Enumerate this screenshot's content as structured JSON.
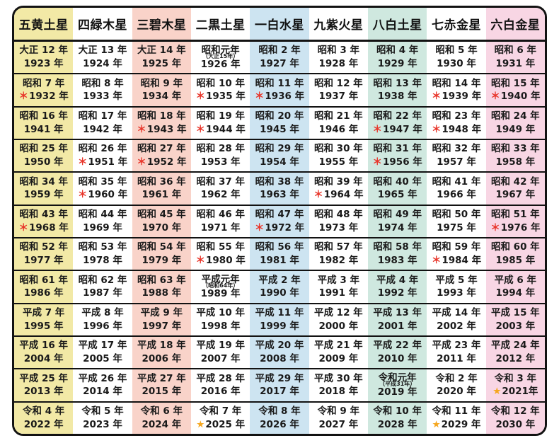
{
  "chart_data": {
    "type": "table",
    "legend_marks": {
      "asterisk": {
        "glyph": "＊",
        "color": "#e8352a"
      },
      "star": {
        "glyph": "★",
        "color": "#f5a71f"
      }
    },
    "columns": [
      {
        "label": "五黄土星",
        "bg": "#f2e9a6"
      },
      {
        "label": "四緑木星",
        "bg": "#ffffff"
      },
      {
        "label": "三碧木星",
        "bg": "#f9d3c9"
      },
      {
        "label": "二黒土星",
        "bg": "#ffffff"
      },
      {
        "label": "一白水星",
        "bg": "#cde4f1"
      },
      {
        "label": "九紫火星",
        "bg": "#ffffff"
      },
      {
        "label": "八白土星",
        "bg": "#cfe8df"
      },
      {
        "label": "七赤金星",
        "bg": "#ffffff"
      },
      {
        "label": "六白金星",
        "bg": "#f8d6e4"
      }
    ],
    "rows": [
      [
        {
          "era": "大正 12 年",
          "year": "1923 年"
        },
        {
          "era": "大正 13 年",
          "year": "1924 年"
        },
        {
          "era": "大正 14 年",
          "year": "1925 年"
        },
        {
          "era": "昭和元年",
          "note": "（大正15年）",
          "year": "1926 年"
        },
        {
          "era": "昭和 2 年",
          "year": "1927 年"
        },
        {
          "era": "昭和 3 年",
          "year": "1928 年"
        },
        {
          "era": "昭和 4 年",
          "year": "1929 年"
        },
        {
          "era": "昭和 5 年",
          "year": "1930 年"
        },
        {
          "era": "昭和 6 年",
          "year": "1931 年"
        }
      ],
      [
        {
          "era": "昭和 7 年",
          "year": "1932 年",
          "mark": "asterisk"
        },
        {
          "era": "昭和 8 年",
          "year": "1933 年"
        },
        {
          "era": "昭和 9 年",
          "year": "1934 年"
        },
        {
          "era": "昭和 10 年",
          "year": "1935 年",
          "mark": "asterisk"
        },
        {
          "era": "昭和 11 年",
          "year": "1936 年",
          "mark": "asterisk"
        },
        {
          "era": "昭和 12 年",
          "year": "1937 年"
        },
        {
          "era": "昭和 13 年",
          "year": "1938 年"
        },
        {
          "era": "昭和 14 年",
          "year": "1939 年",
          "mark": "asterisk"
        },
        {
          "era": "昭和 15 年",
          "year": "1940 年",
          "mark": "asterisk"
        }
      ],
      [
        {
          "era": "昭和 16 年",
          "year": "1941 年"
        },
        {
          "era": "昭和 17 年",
          "year": "1942 年"
        },
        {
          "era": "昭和 18 年",
          "year": "1943 年",
          "mark": "asterisk"
        },
        {
          "era": "昭和 19 年",
          "year": "1944 年",
          "mark": "asterisk"
        },
        {
          "era": "昭和 20 年",
          "year": "1945 年"
        },
        {
          "era": "昭和 21 年",
          "year": "1946 年"
        },
        {
          "era": "昭和 22 年",
          "year": "1947 年",
          "mark": "asterisk"
        },
        {
          "era": "昭和 23 年",
          "year": "1948 年",
          "mark": "asterisk"
        },
        {
          "era": "昭和 24 年",
          "year": "1949 年"
        }
      ],
      [
        {
          "era": "昭和 25 年",
          "year": "1950 年"
        },
        {
          "era": "昭和 26 年",
          "year": "1951 年",
          "mark": "asterisk"
        },
        {
          "era": "昭和 27 年",
          "year": "1952 年",
          "mark": "asterisk"
        },
        {
          "era": "昭和 28 年",
          "year": "1953 年"
        },
        {
          "era": "昭和 29 年",
          "year": "1954 年"
        },
        {
          "era": "昭和 30 年",
          "year": "1955 年"
        },
        {
          "era": "昭和 31 年",
          "year": "1956 年",
          "mark": "asterisk"
        },
        {
          "era": "昭和 32 年",
          "year": "1957 年"
        },
        {
          "era": "昭和 33 年",
          "year": "1958 年"
        }
      ],
      [
        {
          "era": "昭和 34 年",
          "year": "1959 年"
        },
        {
          "era": "昭和 35 年",
          "year": "1960 年",
          "mark": "asterisk"
        },
        {
          "era": "昭和 36 年",
          "year": "1961 年"
        },
        {
          "era": "昭和 37 年",
          "year": "1962 年"
        },
        {
          "era": "昭和 38 年",
          "year": "1963 年"
        },
        {
          "era": "昭和 39 年",
          "year": "1964 年",
          "mark": "asterisk"
        },
        {
          "era": "昭和 40 年",
          "year": "1965 年"
        },
        {
          "era": "昭和 41 年",
          "year": "1966 年"
        },
        {
          "era": "昭和 42 年",
          "year": "1967 年"
        }
      ],
      [
        {
          "era": "昭和 43 年",
          "year": "1968 年",
          "mark": "asterisk"
        },
        {
          "era": "昭和 44 年",
          "year": "1969 年"
        },
        {
          "era": "昭和 45 年",
          "year": "1970 年"
        },
        {
          "era": "昭和 46 年",
          "year": "1971 年"
        },
        {
          "era": "昭和 47 年",
          "year": "1972 年",
          "mark": "asterisk"
        },
        {
          "era": "昭和 48 年",
          "year": "1973 年"
        },
        {
          "era": "昭和 49 年",
          "year": "1974 年"
        },
        {
          "era": "昭和 50 年",
          "year": "1975 年"
        },
        {
          "era": "昭和 51 年",
          "year": "1976 年",
          "mark": "asterisk"
        }
      ],
      [
        {
          "era": "昭和 52 年",
          "year": "1977 年"
        },
        {
          "era": "昭和 53 年",
          "year": "1978 年"
        },
        {
          "era": "昭和 54 年",
          "year": "1979 年"
        },
        {
          "era": "昭和 55 年",
          "year": "1980 年",
          "mark": "asterisk"
        },
        {
          "era": "昭和 56 年",
          "year": "1981 年"
        },
        {
          "era": "昭和 57 年",
          "year": "1982 年"
        },
        {
          "era": "昭和 58 年",
          "year": "1983 年"
        },
        {
          "era": "昭和 59 年",
          "year": "1984 年",
          "mark": "asterisk"
        },
        {
          "era": "昭和 60 年",
          "year": "1985 年"
        }
      ],
      [
        {
          "era": "昭和 61 年",
          "year": "1986 年"
        },
        {
          "era": "昭和 62 年",
          "year": "1987 年"
        },
        {
          "era": "昭和 63 年",
          "year": "1988 年"
        },
        {
          "era": "平成元年",
          "note": "（昭和64年）",
          "year": "1989 年"
        },
        {
          "era": "平成 2 年",
          "year": "1990 年"
        },
        {
          "era": "平成 3 年",
          "year": "1991 年"
        },
        {
          "era": "平成 4 年",
          "year": "1992 年"
        },
        {
          "era": "平成 5 年",
          "year": "1993 年"
        },
        {
          "era": "平成 6 年",
          "year": "1994 年"
        }
      ],
      [
        {
          "era": "平成 7 年",
          "year": "1995 年"
        },
        {
          "era": "平成 8 年",
          "year": "1996 年"
        },
        {
          "era": "平成 9 年",
          "year": "1997 年"
        },
        {
          "era": "平成 10 年",
          "year": "1998 年"
        },
        {
          "era": "平成 11 年",
          "year": "1999 年"
        },
        {
          "era": "平成 12 年",
          "year": "2000 年"
        },
        {
          "era": "平成 13 年",
          "year": "2001 年"
        },
        {
          "era": "平成 14 年",
          "year": "2002 年"
        },
        {
          "era": "平成 15 年",
          "year": "2003 年"
        }
      ],
      [
        {
          "era": "平成 16 年",
          "year": "2004 年"
        },
        {
          "era": "平成 17 年",
          "year": "2005 年"
        },
        {
          "era": "平成 18 年",
          "year": "2006 年"
        },
        {
          "era": "平成 19 年",
          "year": "2007 年"
        },
        {
          "era": "平成 20 年",
          "year": "2008 年"
        },
        {
          "era": "平成 21 年",
          "year": "2009 年"
        },
        {
          "era": "平成 22 年",
          "year": "2010 年"
        },
        {
          "era": "平成 23 年",
          "year": "2011 年"
        },
        {
          "era": "平成 24 年",
          "year": "2012 年"
        }
      ],
      [
        {
          "era": "平成 25 年",
          "year": "2013 年"
        },
        {
          "era": "平成 26 年",
          "year": "2014 年"
        },
        {
          "era": "平成 27 年",
          "year": "2015 年"
        },
        {
          "era": "平成 28 年",
          "year": "2016 年"
        },
        {
          "era": "平成 29 年",
          "year": "2017 年"
        },
        {
          "era": "平成 30 年",
          "year": "2018 年"
        },
        {
          "era": "令和元年",
          "note": "（平成31年）",
          "year": "2019 年"
        },
        {
          "era": "令和 2 年",
          "year": "2020 年"
        },
        {
          "era": "令和 3 年",
          "year": "2021年",
          "mark": "star"
        }
      ],
      [
        {
          "era": "令和 4 年",
          "year": "2022 年"
        },
        {
          "era": "令和 5 年",
          "year": "2023 年"
        },
        {
          "era": "令和 6 年",
          "year": "2024 年"
        },
        {
          "era": "令和 7 年",
          "year": "2025 年",
          "mark": "star"
        },
        {
          "era": "令和 8 年",
          "year": "2026 年"
        },
        {
          "era": "令和 9 年",
          "year": "2027 年"
        },
        {
          "era": "令和 10 年",
          "year": "2028 年"
        },
        {
          "era": "令和 11 年",
          "year": "2029 年",
          "mark": "star"
        },
        {
          "era": "令和 12 年",
          "year": "2030 年"
        }
      ]
    ]
  }
}
